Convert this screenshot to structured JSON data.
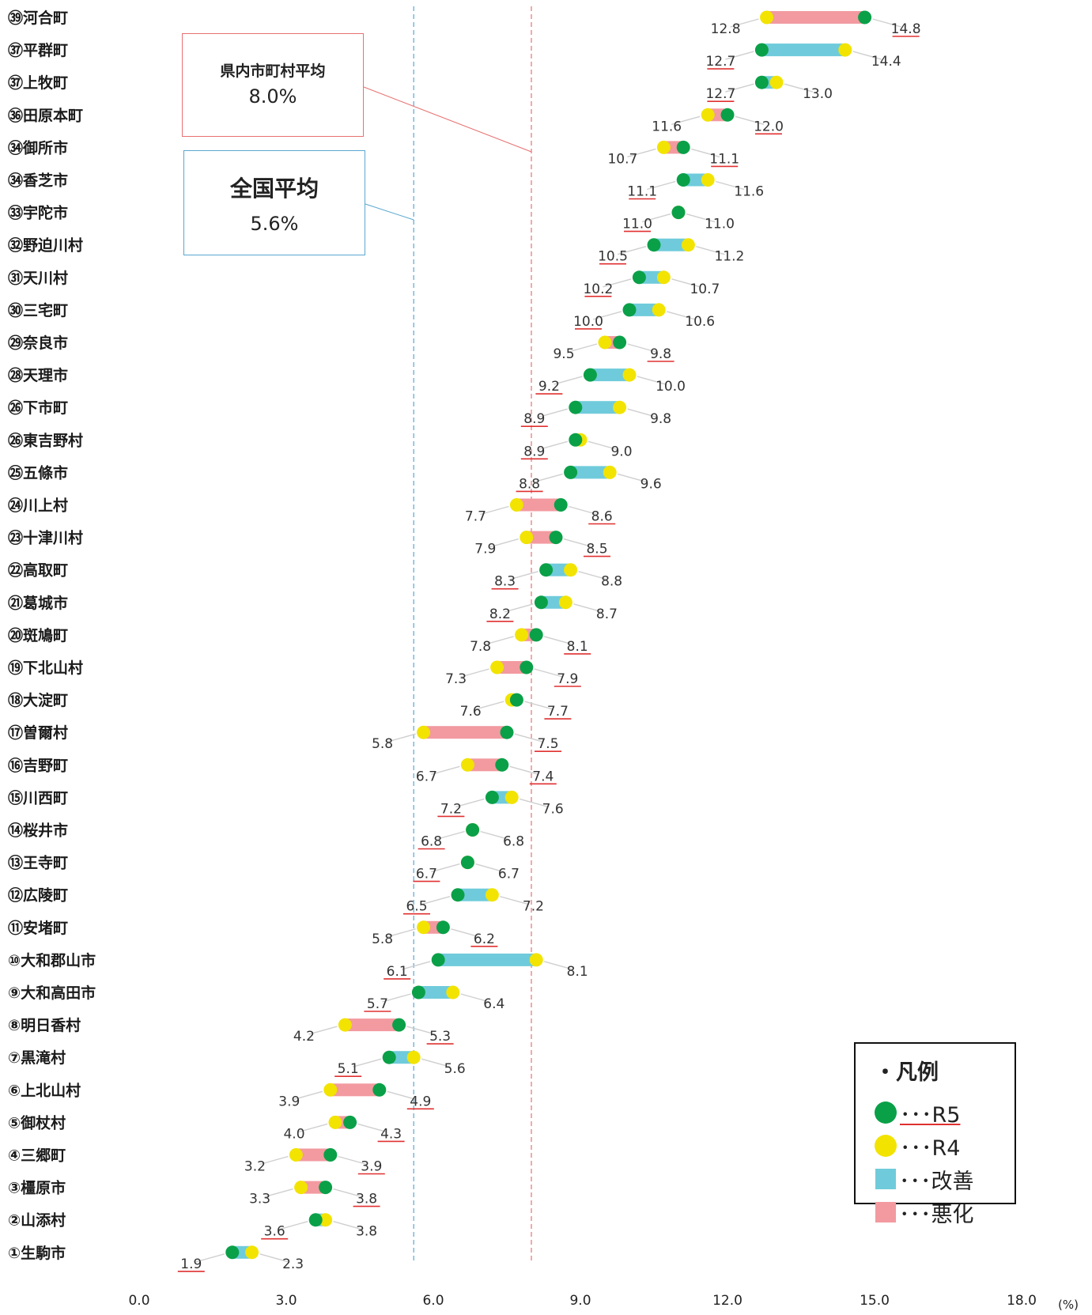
{
  "chart_data": {
    "type": "dumbbell",
    "x_ticks": [
      "0.0",
      "3.0",
      "6.0",
      "9.0",
      "12.0",
      "15.0",
      "18.0"
    ],
    "xlim": [
      0,
      18
    ],
    "unit": "(%)",
    "reference_lines": [
      {
        "label": "県内市町村平均",
        "value_text": "8.0%",
        "value": 8.0,
        "color": "#e87070"
      },
      {
        "label": "全国平均",
        "value_text": "5.6%",
        "value": 5.6,
        "color": "#5aa7d0"
      }
    ],
    "colors": {
      "r5": "#0aa048",
      "r4": "#f2e300",
      "improve": "#6fcbdb",
      "worsen": "#f29aa0",
      "underline": "#e03030"
    },
    "legend": {
      "title": "・凡例",
      "items": [
        {
          "symbol": "green-dot",
          "label": "･･･R5"
        },
        {
          "symbol": "yellow-dot",
          "label": "･･･R4"
        },
        {
          "symbol": "blue-bar",
          "label": "･･･改善"
        },
        {
          "symbol": "pink-bar",
          "label": "･･･悪化"
        }
      ]
    },
    "rows": [
      {
        "label": "㊴河合町",
        "r4": 12.8,
        "r5": 14.8,
        "r4_text": "12.8",
        "r5_text": "14.8",
        "status": "worsen"
      },
      {
        "label": "㊲平群町",
        "r4": 14.4,
        "r5": 12.7,
        "r4_text": "14.4",
        "r5_text": "12.7",
        "status": "improve"
      },
      {
        "label": "㊲上牧町",
        "r4": 13.0,
        "r5": 12.7,
        "r4_text": "13.0",
        "r5_text": "12.7",
        "status": "improve"
      },
      {
        "label": "㊱田原本町",
        "r4": 11.6,
        "r5": 12.0,
        "r4_text": "11.6",
        "r5_text": "12.0",
        "status": "worsen"
      },
      {
        "label": "㉞御所市",
        "r4": 10.7,
        "r5": 11.1,
        "r4_text": "10.7",
        "r5_text": "11.1",
        "status": "worsen"
      },
      {
        "label": "㉞香芝市",
        "r4": 11.6,
        "r5": 11.1,
        "r4_text": "11.6",
        "r5_text": "11.1",
        "status": "improve"
      },
      {
        "label": "㉝宇陀市",
        "r4": 11.0,
        "r5": 11.0,
        "r4_text": "11.0",
        "r5_text": "11.0",
        "status": "same"
      },
      {
        "label": "㉜野迫川村",
        "r4": 11.2,
        "r5": 10.5,
        "r4_text": "11.2",
        "r5_text": "10.5",
        "status": "improve"
      },
      {
        "label": "㉛天川村",
        "r4": 10.7,
        "r5": 10.2,
        "r4_text": "10.7",
        "r5_text": "10.2",
        "status": "improve"
      },
      {
        "label": "㉚三宅町",
        "r4": 10.6,
        "r5": 10.0,
        "r4_text": "10.6",
        "r5_text": "10.0",
        "status": "improve"
      },
      {
        "label": "㉙奈良市",
        "r4": 9.5,
        "r5": 9.8,
        "r4_text": "9.5",
        "r5_text": "9.8",
        "status": "worsen"
      },
      {
        "label": "㉘天理市",
        "r4": 10.0,
        "r5": 9.2,
        "r4_text": "10.0",
        "r5_text": "9.2",
        "status": "improve"
      },
      {
        "label": "㉖下市町",
        "r4": 9.8,
        "r5": 8.9,
        "r4_text": "9.8",
        "r5_text": "8.9",
        "status": "improve"
      },
      {
        "label": "㉖東吉野村",
        "r4": 9.0,
        "r5": 8.9,
        "r4_text": "9.0",
        "r5_text": "8.9",
        "status": "improve"
      },
      {
        "label": "㉕五條市",
        "r4": 9.6,
        "r5": 8.8,
        "r4_text": "9.6",
        "r5_text": "8.8",
        "status": "improve"
      },
      {
        "label": "㉔川上村",
        "r4": 7.7,
        "r5": 8.6,
        "r4_text": "7.7",
        "r5_text": "8.6",
        "status": "worsen"
      },
      {
        "label": "㉓十津川村",
        "r4": 7.9,
        "r5": 8.5,
        "r4_text": "7.9",
        "r5_text": "8.5",
        "status": "worsen"
      },
      {
        "label": "㉒高取町",
        "r4": 8.8,
        "r5": 8.3,
        "r4_text": "8.8",
        "r5_text": "8.3",
        "status": "improve"
      },
      {
        "label": "㉑葛城市",
        "r4": 8.7,
        "r5": 8.2,
        "r4_text": "8.7",
        "r5_text": "8.2",
        "status": "improve"
      },
      {
        "label": "⑳斑鳩町",
        "r4": 7.8,
        "r5": 8.1,
        "r4_text": "7.8",
        "r5_text": "8.1",
        "status": "worsen"
      },
      {
        "label": "⑲下北山村",
        "r4": 7.3,
        "r5": 7.9,
        "r4_text": "7.3",
        "r5_text": "7.9",
        "status": "worsen"
      },
      {
        "label": "⑱大淀町",
        "r4": 7.6,
        "r5": 7.7,
        "r4_text": "7.6",
        "r5_text": "7.7",
        "status": "worsen"
      },
      {
        "label": "⑰曽爾村",
        "r4": 5.8,
        "r5": 7.5,
        "r4_text": "5.8",
        "r5_text": "7.5",
        "status": "worsen"
      },
      {
        "label": "⑯吉野町",
        "r4": 6.7,
        "r5": 7.4,
        "r4_text": "6.7",
        "r5_text": "7.4",
        "status": "worsen"
      },
      {
        "label": "⑮川西町",
        "r4": 7.6,
        "r5": 7.2,
        "r4_text": "7.6",
        "r5_text": "7.2",
        "status": "improve"
      },
      {
        "label": "⑭桜井市",
        "r4": 6.8,
        "r5": 6.8,
        "r4_text": "6.8",
        "r5_text": "6.8",
        "status": "same"
      },
      {
        "label": "⑬王寺町",
        "r4": 6.7,
        "r5": 6.7,
        "r4_text": "6.7",
        "r5_text": "6.7",
        "status": "same"
      },
      {
        "label": "⑫広陵町",
        "r4": 7.2,
        "r5": 6.5,
        "r4_text": "7.2",
        "r5_text": "6.5",
        "status": "improve"
      },
      {
        "label": "⑪安堵町",
        "r4": 5.8,
        "r5": 6.2,
        "r4_text": "5.8",
        "r5_text": "6.2",
        "status": "worsen"
      },
      {
        "label": "⑩大和郡山市",
        "r4": 8.1,
        "r5": 6.1,
        "r4_text": "8.1",
        "r5_text": "6.1",
        "status": "improve"
      },
      {
        "label": "⑨大和高田市",
        "r4": 6.4,
        "r5": 5.7,
        "r4_text": "6.4",
        "r5_text": "5.7",
        "status": "improve"
      },
      {
        "label": "⑧明日香村",
        "r4": 4.2,
        "r5": 5.3,
        "r4_text": "4.2",
        "r5_text": "5.3",
        "status": "worsen"
      },
      {
        "label": "⑦黒滝村",
        "r4": 5.6,
        "r5": 5.1,
        "r4_text": "5.6",
        "r5_text": "5.1",
        "status": "improve"
      },
      {
        "label": "⑥上北山村",
        "r4": 3.9,
        "r5": 4.9,
        "r4_text": "3.9",
        "r5_text": "4.9",
        "status": "worsen"
      },
      {
        "label": "⑤御杖村",
        "r4": 4.0,
        "r5": 4.3,
        "r4_text": "4.0",
        "r5_text": "4.3",
        "status": "worsen"
      },
      {
        "label": "④三郷町",
        "r4": 3.2,
        "r5": 3.9,
        "r4_text": "3.2",
        "r5_text": "3.9",
        "status": "worsen"
      },
      {
        "label": "③橿原市",
        "r4": 3.3,
        "r5": 3.8,
        "r4_text": "3.3",
        "r5_text": "3.8",
        "status": "worsen"
      },
      {
        "label": "②山添村",
        "r4": 3.8,
        "r5": 3.6,
        "r4_text": "3.8",
        "r5_text": "3.6",
        "status": "improve"
      },
      {
        "label": "①生駒市",
        "r4": 2.3,
        "r5": 1.9,
        "r4_text": "2.3",
        "r5_text": "1.9",
        "status": "improve"
      }
    ]
  }
}
